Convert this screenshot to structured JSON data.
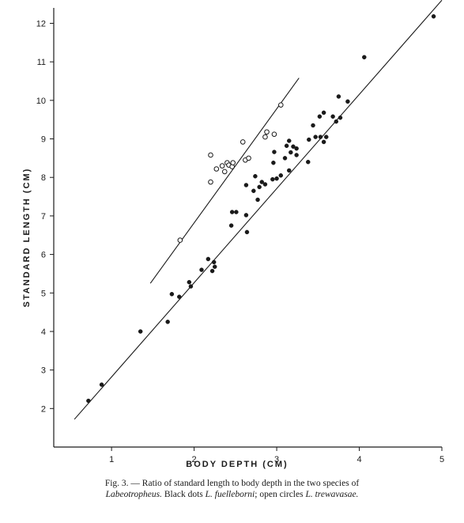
{
  "chart_data": {
    "type": "scatter",
    "xlabel": "BODY DEPTH (CM)",
    "ylabel": "STANDARD LENGTH (CM)",
    "xlim": [
      0.3,
      5.0
    ],
    "ylim": [
      1.0,
      12.4
    ],
    "x_ticks": [
      "1",
      "2",
      "3",
      "4",
      "5"
    ],
    "y_ticks": [
      "2",
      "3",
      "4",
      "5",
      "6",
      "7",
      "8",
      "9",
      "10",
      "11",
      "12"
    ],
    "grid": false,
    "legend": "none",
    "series": [
      {
        "marker": "filled",
        "color": "#1a1a1a",
        "points": [
          [
            0.72,
            2.2
          ],
          [
            0.88,
            2.62
          ],
          [
            1.35,
            4.0
          ],
          [
            1.68,
            4.25
          ],
          [
            1.73,
            4.97
          ],
          [
            1.82,
            4.9
          ],
          [
            1.94,
            5.28
          ],
          [
            1.96,
            5.17
          ],
          [
            2.09,
            5.6
          ],
          [
            2.17,
            5.88
          ],
          [
            2.22,
            5.57
          ],
          [
            2.24,
            5.8
          ],
          [
            2.25,
            5.68
          ],
          [
            2.45,
            6.75
          ],
          [
            2.46,
            7.1
          ],
          [
            2.51,
            7.1
          ],
          [
            2.64,
            6.58
          ],
          [
            2.63,
            7.02
          ],
          [
            2.63,
            7.8
          ],
          [
            2.72,
            7.65
          ],
          [
            2.74,
            8.03
          ],
          [
            2.77,
            7.42
          ],
          [
            2.79,
            7.75
          ],
          [
            2.82,
            7.88
          ],
          [
            2.86,
            7.82
          ],
          [
            2.95,
            7.95
          ],
          [
            2.96,
            8.38
          ],
          [
            2.97,
            8.66
          ],
          [
            3.0,
            7.97
          ],
          [
            3.05,
            8.05
          ],
          [
            3.1,
            8.5
          ],
          [
            3.12,
            8.82
          ],
          [
            3.15,
            8.95
          ],
          [
            3.15,
            8.18
          ],
          [
            3.17,
            8.65
          ],
          [
            3.2,
            8.8
          ],
          [
            3.24,
            8.58
          ],
          [
            3.24,
            8.75
          ],
          [
            3.38,
            8.4
          ],
          [
            3.39,
            8.98
          ],
          [
            3.44,
            9.35
          ],
          [
            3.47,
            9.05
          ],
          [
            3.52,
            9.58
          ],
          [
            3.53,
            9.05
          ],
          [
            3.57,
            9.68
          ],
          [
            3.57,
            8.92
          ],
          [
            3.6,
            9.05
          ],
          [
            3.68,
            9.58
          ],
          [
            3.72,
            9.45
          ],
          [
            3.75,
            10.1
          ],
          [
            3.77,
            9.55
          ],
          [
            3.86,
            9.97
          ],
          [
            4.06,
            11.12
          ],
          [
            4.9,
            12.18
          ]
        ],
        "fit": [
          [
            0.55,
            1.72
          ],
          [
            5.0,
            12.6
          ]
        ]
      },
      {
        "marker": "open",
        "color": "#1a1a1a",
        "points": [
          [
            1.83,
            6.37
          ],
          [
            2.2,
            8.58
          ],
          [
            2.2,
            7.88
          ],
          [
            2.27,
            8.22
          ],
          [
            2.34,
            8.3
          ],
          [
            2.37,
            8.15
          ],
          [
            2.4,
            8.38
          ],
          [
            2.42,
            8.32
          ],
          [
            2.46,
            8.28
          ],
          [
            2.47,
            8.38
          ],
          [
            2.59,
            8.92
          ],
          [
            2.62,
            8.45
          ],
          [
            2.66,
            8.5
          ],
          [
            2.86,
            9.05
          ],
          [
            2.88,
            9.18
          ],
          [
            2.97,
            9.12
          ],
          [
            3.05,
            9.88
          ]
        ],
        "fit": [
          [
            1.47,
            5.25
          ],
          [
            3.27,
            10.58
          ]
        ]
      }
    ],
    "caption_line1": "Fig. 3. — Ratio of standard length to body depth in the two species of",
    "caption_line2_italic_a": "Labeotropheus.",
    "caption_line2_mid": " Black dots ",
    "caption_line2_italic_b": "L. fuelleborni",
    "caption_line2_sep": "; open circles ",
    "caption_line2_italic_c": "L. trewavasae."
  }
}
